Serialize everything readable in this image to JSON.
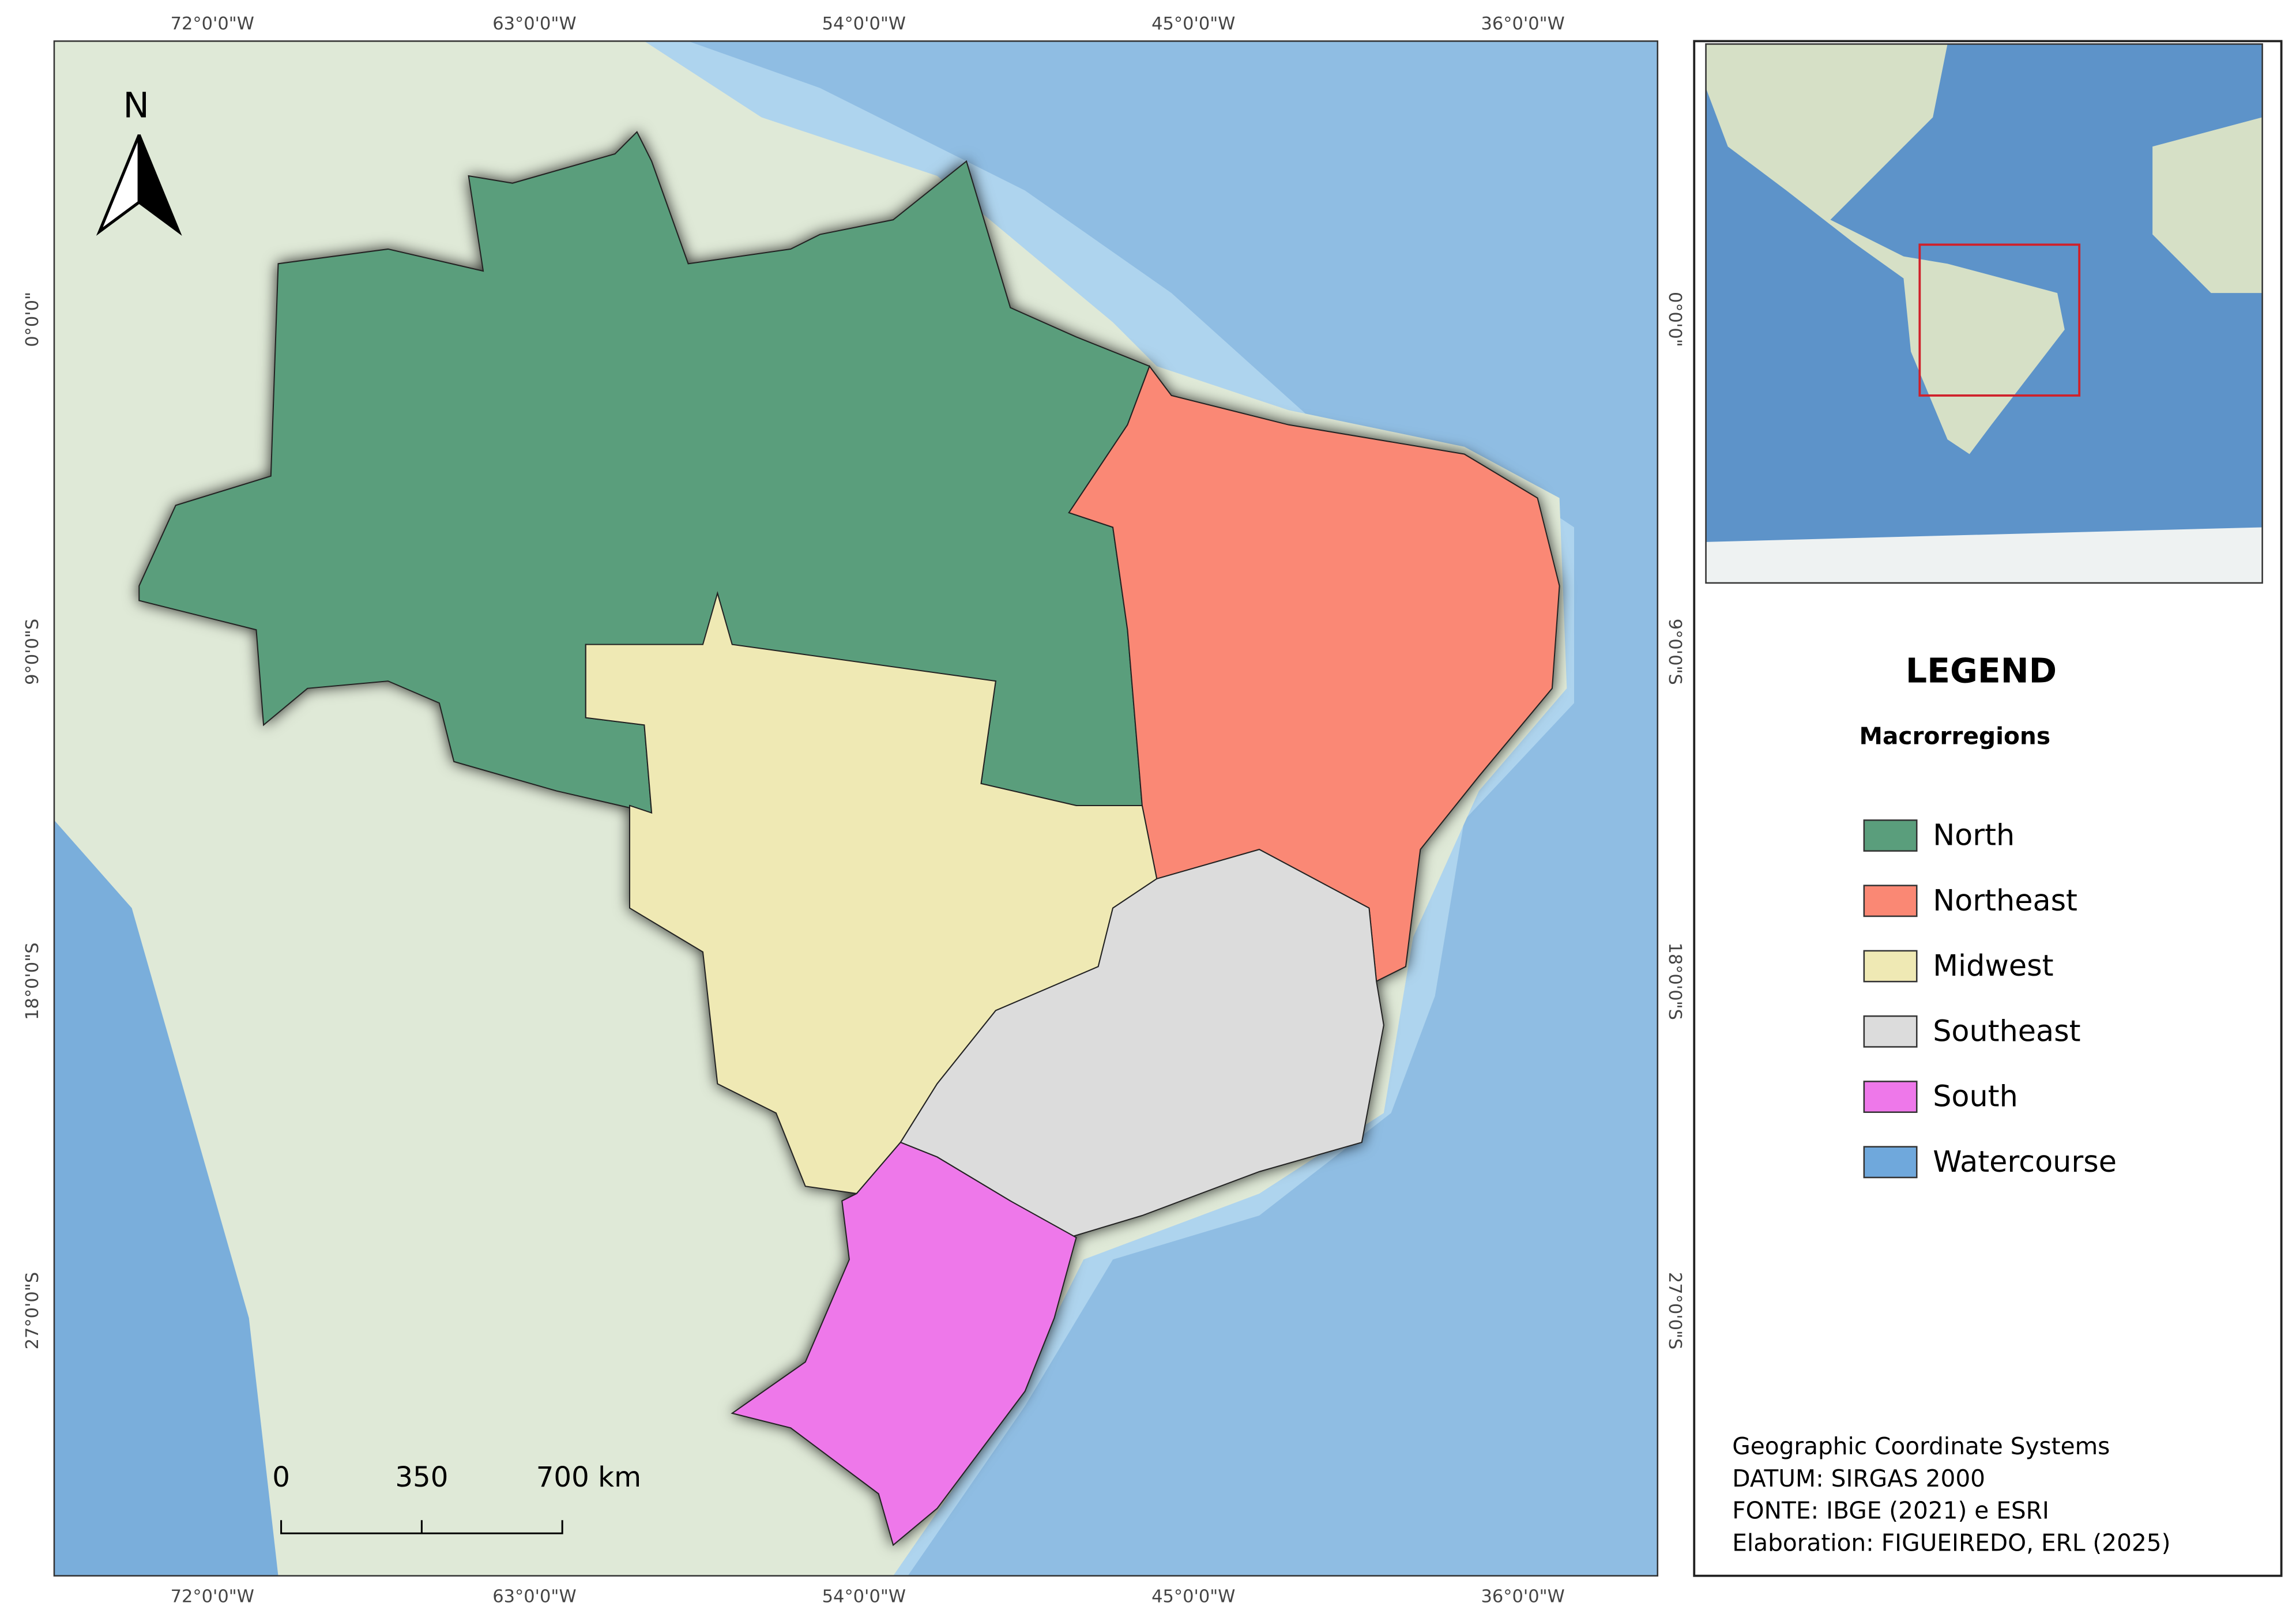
{
  "map": {
    "longitude_labels": [
      "72°0'0\"W",
      "63°0'0\"W",
      "54°0'0\"W",
      "45°0'0\"W",
      "36°0'0\"W"
    ],
    "latitude_labels": [
      "0°0'0\"",
      "9°0'0\"S",
      "18°0'0\"S",
      "27°0'0\"S"
    ],
    "north_label": "N",
    "scale_bar": [
      "0",
      "350",
      "700 km"
    ]
  },
  "legend": {
    "title": "LEGEND",
    "subtitle": "Macrorregions",
    "items": [
      {
        "label": "North",
        "color": "#5a9e7c"
      },
      {
        "label": "Northeast",
        "color": "#fa8874"
      },
      {
        "label": "Midwest",
        "color": "#efe9b4"
      },
      {
        "label": "Southeast",
        "color": "#dcdcdc"
      },
      {
        "label": "South",
        "color": "#ee78ea"
      },
      {
        "label": "Watercourse",
        "color": "#6fa8dc"
      }
    ]
  },
  "credits": [
    "Geographic Coordinate Systems",
    "DATUM: SIRGAS 2000",
    "FONTE: IBGE (2021) e ESRI",
    "Elaboration: FIGUEIREDO, ERL (2025)"
  ]
}
